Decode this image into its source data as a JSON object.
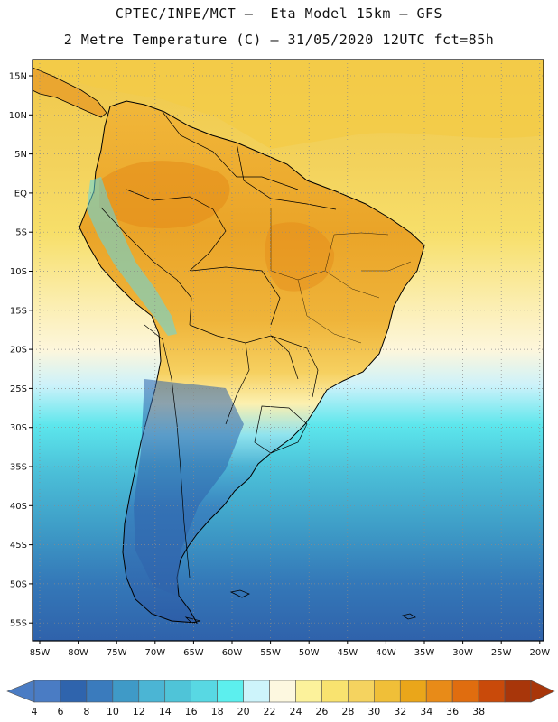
{
  "header": {
    "line1": "CPTEC/INPE/MCT –  Eta Model 15km – GFS",
    "line2": "2 Metre Temperature (C) – 31/05/2020 12UTC fct=85h"
  },
  "map": {
    "lat_labels": [
      "15N",
      "10N",
      "5N",
      "EQ",
      "5S",
      "10S",
      "15S",
      "20S",
      "25S",
      "30S",
      "35S",
      "40S",
      "45S",
      "50S",
      "55S"
    ],
    "lon_labels": [
      "85W",
      "80W",
      "75W",
      "70W",
      "65W",
      "60W",
      "55W",
      "50W",
      "45W",
      "40W",
      "35W",
      "30W",
      "25W",
      "20W"
    ]
  },
  "colorbar": {
    "labels": [
      "4",
      "6",
      "8",
      "10",
      "12",
      "14",
      "16",
      "18",
      "20",
      "22",
      "24",
      "26",
      "28",
      "30",
      "32",
      "34",
      "36",
      "38"
    ],
    "colors": [
      "#4a7cc4",
      "#2f64ad",
      "#3a7bbd",
      "#3f9ac7",
      "#4bb5d4",
      "#4fc4d8",
      "#58d8e3",
      "#5cefee",
      "#cdf4fb",
      "#fdf8e0",
      "#fcf29b",
      "#f9e36f",
      "#f5d35f",
      "#f0bf38",
      "#eaa61a",
      "#e88b18",
      "#e06d0f",
      "#c94a0a",
      "#a8360a"
    ]
  }
}
